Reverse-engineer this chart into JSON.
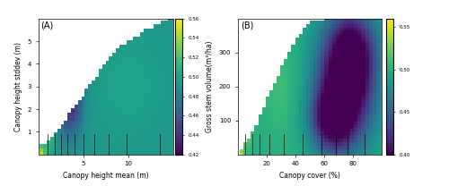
{
  "figsize": [
    5.0,
    2.08
  ],
  "dpi": 100,
  "colormap": "viridis",
  "panel_A": {
    "label": "(A)",
    "xlabel": "Canopy height mean (m)",
    "ylabel": "Canopy height stddev (m)",
    "xlim": [
      0,
      15
    ],
    "ylim": [
      0,
      6
    ],
    "xticks": [
      5,
      10
    ],
    "yticks": [
      1,
      2,
      3,
      4,
      5
    ],
    "x_deciles": [
      1.0,
      1.8,
      2.5,
      3.2,
      4.0,
      5.0,
      6.2,
      7.8,
      9.8,
      13.5
    ],
    "vmin": 0.42,
    "vmax": 0.56,
    "colorbar_ticks": [
      0.42,
      0.44,
      0.46,
      0.48,
      0.5,
      0.52,
      0.54,
      0.56
    ],
    "nx": 40,
    "ny": 35
  },
  "panel_B": {
    "label": "(B)",
    "xlabel": "Canopy cover (%)",
    "ylabel": "Gross stem volume(m³/ha)",
    "xlim": [
      0,
      100
    ],
    "ylim": [
      0,
      400
    ],
    "xticks": [
      20,
      40,
      60,
      80
    ],
    "yticks": [
      100,
      200,
      300
    ],
    "x_deciles": [
      5,
      10,
      15,
      22,
      32,
      45,
      58,
      68,
      76,
      88
    ],
    "vmin": 0.4,
    "vmax": 0.56,
    "colorbar_ticks": [
      0.4,
      0.45,
      0.5,
      0.55
    ],
    "nx": 40,
    "ny": 40
  },
  "bg_color": "white"
}
